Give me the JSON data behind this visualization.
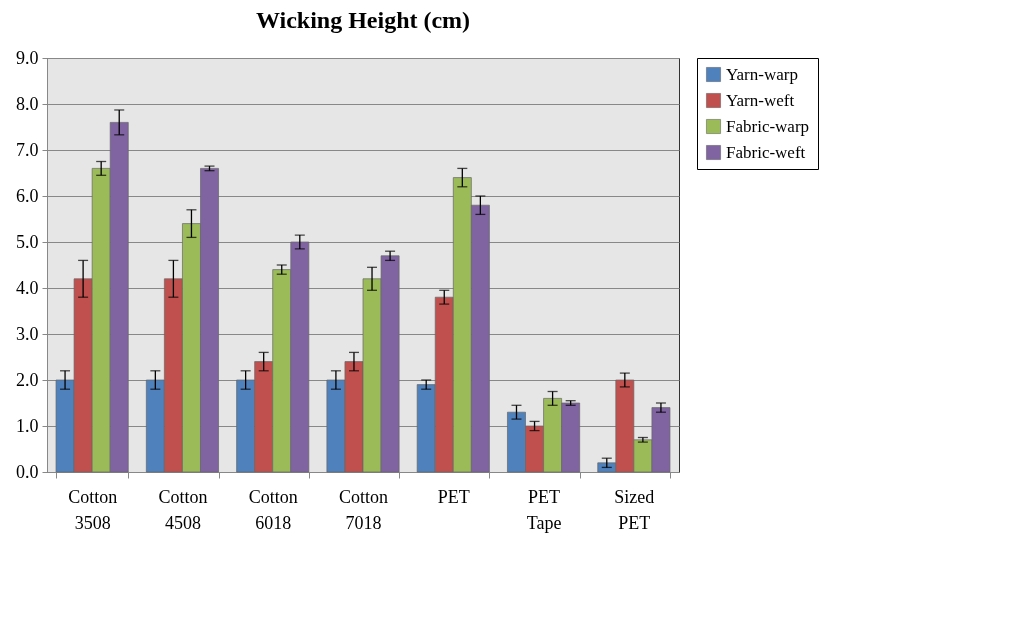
{
  "chart_data": {
    "type": "bar",
    "title": "Wicking Height (cm)",
    "categories": [
      "Cotton 3508",
      "Cotton 4508",
      "Cotton 6018",
      "Cotton 7018",
      "PET",
      "PET Tape",
      "Sized PET"
    ],
    "series": [
      {
        "name": "Yarn-warp",
        "color": "#4f81bd",
        "values": [
          2.0,
          2.0,
          2.0,
          2.0,
          1.9,
          1.3,
          0.2
        ],
        "errors": [
          0.2,
          0.2,
          0.2,
          0.2,
          0.1,
          0.15,
          0.1
        ]
      },
      {
        "name": "Yarn-weft",
        "color": "#c0504d",
        "values": [
          4.2,
          4.2,
          2.4,
          2.4,
          3.8,
          1.0,
          2.0
        ],
        "errors": [
          0.4,
          0.4,
          0.2,
          0.2,
          0.15,
          0.1,
          0.15
        ]
      },
      {
        "name": "Fabric-warp",
        "color": "#9bbb59",
        "values": [
          6.6,
          5.4,
          4.4,
          4.2,
          6.4,
          1.6,
          0.7
        ],
        "errors": [
          0.15,
          0.3,
          0.1,
          0.25,
          0.2,
          0.15,
          0.05
        ]
      },
      {
        "name": "Fabric-weft",
        "color": "#8064a2",
        "values": [
          7.6,
          6.6,
          5.0,
          4.7,
          5.8,
          1.5,
          1.4
        ],
        "errors": [
          0.27,
          0.05,
          0.15,
          0.1,
          0.2,
          0.05,
          0.1
        ]
      }
    ],
    "ylim": [
      0,
      9
    ],
    "yticks": [
      {
        "value": 0,
        "label": "0.0"
      },
      {
        "value": 1,
        "label": "1.0"
      },
      {
        "value": 2,
        "label": "2.0"
      },
      {
        "value": 3,
        "label": "3.0"
      },
      {
        "value": 4,
        "label": "4.0"
      },
      {
        "value": 5,
        "label": "5.0"
      },
      {
        "value": 6,
        "label": "6.0"
      },
      {
        "value": 7,
        "label": "7.0"
      },
      {
        "value": 8,
        "label": "8.0"
      },
      {
        "value": 9,
        "label": "9.0"
      }
    ],
    "grid": "y",
    "legend": "right"
  }
}
